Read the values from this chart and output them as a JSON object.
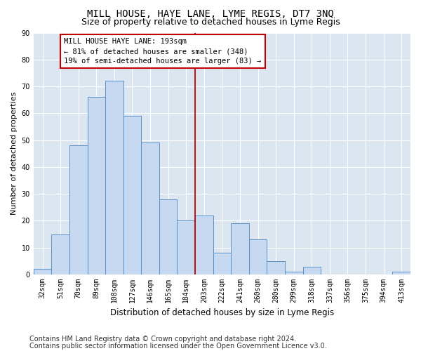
{
  "title": "MILL HOUSE, HAYE LANE, LYME REGIS, DT7 3NQ",
  "subtitle": "Size of property relative to detached houses in Lyme Regis",
  "xlabel": "Distribution of detached houses by size in Lyme Regis",
  "ylabel": "Number of detached properties",
  "categories": [
    "32sqm",
    "51sqm",
    "70sqm",
    "89sqm",
    "108sqm",
    "127sqm",
    "146sqm",
    "165sqm",
    "184sqm",
    "203sqm",
    "222sqm",
    "241sqm",
    "260sqm",
    "280sqm",
    "299sqm",
    "318sqm",
    "337sqm",
    "356sqm",
    "375sqm",
    "394sqm",
    "413sqm"
  ],
  "values": [
    2,
    15,
    48,
    66,
    72,
    59,
    49,
    28,
    20,
    22,
    8,
    19,
    13,
    5,
    1,
    3,
    0,
    0,
    0,
    0,
    1
  ],
  "bar_color": "#c6d9f0",
  "bar_edge_color": "#5b8fc4",
  "vline_x": 8.5,
  "vline_color": "#c00000",
  "annotation_text": "MILL HOUSE HAYE LANE: 193sqm\n← 81% of detached houses are smaller (348)\n19% of semi-detached houses are larger (83) →",
  "annotation_box_color": "#ffffff",
  "annotation_box_edge": "#c00000",
  "ylim": [
    0,
    90
  ],
  "yticks": [
    0,
    10,
    20,
    30,
    40,
    50,
    60,
    70,
    80,
    90
  ],
  "footer1": "Contains HM Land Registry data © Crown copyright and database right 2024.",
  "footer2": "Contains public sector information licensed under the Open Government Licence v3.0.",
  "plot_bg_color": "#dce6f1",
  "fig_bg_color": "#ffffff",
  "title_fontsize": 10,
  "subtitle_fontsize": 9,
  "tick_fontsize": 7,
  "ylabel_fontsize": 8,
  "xlabel_fontsize": 8.5,
  "footer_fontsize": 7,
  "annot_fontsize": 7.5
}
